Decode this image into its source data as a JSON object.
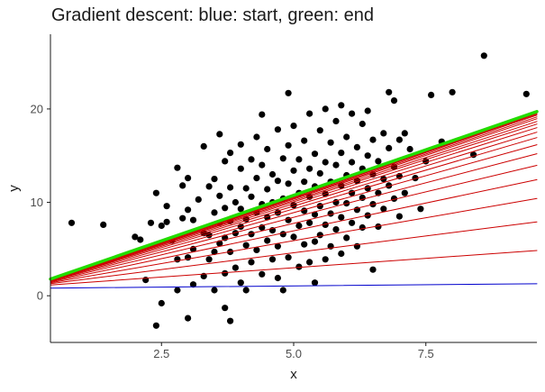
{
  "chart_data": {
    "type": "scatter",
    "title": "Gradient descent: blue: start, green: end",
    "xlabel": "x",
    "ylabel": "y",
    "xlim": [
      0.4,
      9.6
    ],
    "ylim": [
      -5,
      28
    ],
    "x_ticks": [
      2.5,
      5.0,
      7.5
    ],
    "x_tick_labels": [
      "2.5",
      "5.0",
      "7.5"
    ],
    "y_ticks": [
      0,
      10,
      20
    ],
    "y_tick_labels": [
      "0",
      "10",
      "20"
    ],
    "grid": false,
    "point_color": "#000000",
    "points": [
      [
        0.8,
        7.8
      ],
      [
        1.4,
        7.6
      ],
      [
        2.0,
        6.3
      ],
      [
        2.1,
        6.0
      ],
      [
        2.2,
        1.7
      ],
      [
        2.3,
        7.8
      ],
      [
        2.4,
        -3.2
      ],
      [
        2.4,
        11.0
      ],
      [
        2.5,
        7.5
      ],
      [
        2.5,
        -0.8
      ],
      [
        2.6,
        9.6
      ],
      [
        2.6,
        7.9
      ],
      [
        2.7,
        5.9
      ],
      [
        2.8,
        0.6
      ],
      [
        2.8,
        3.9
      ],
      [
        2.8,
        13.7
      ],
      [
        2.9,
        11.8
      ],
      [
        2.9,
        8.3
      ],
      [
        3.0,
        -2.4
      ],
      [
        3.0,
        4.1
      ],
      [
        3.0,
        12.6
      ],
      [
        3.0,
        9.2
      ],
      [
        3.1,
        1.2
      ],
      [
        3.1,
        8.1
      ],
      [
        3.1,
        5.0
      ],
      [
        3.2,
        10.3
      ],
      [
        3.3,
        6.7
      ],
      [
        3.3,
        16.0
      ],
      [
        3.3,
        2.1
      ],
      [
        3.4,
        11.7
      ],
      [
        3.4,
        6.5
      ],
      [
        3.4,
        3.9
      ],
      [
        3.5,
        8.9
      ],
      [
        3.5,
        12.5
      ],
      [
        3.5,
        0.6
      ],
      [
        3.5,
        4.7
      ],
      [
        3.6,
        17.3
      ],
      [
        3.6,
        7.8
      ],
      [
        3.6,
        5.6
      ],
      [
        3.6,
        10.7
      ],
      [
        3.7,
        -1.3
      ],
      [
        3.7,
        14.4
      ],
      [
        3.7,
        9.4
      ],
      [
        3.7,
        6.2
      ],
      [
        3.7,
        2.4
      ],
      [
        3.8,
        -2.7
      ],
      [
        3.8,
        11.6
      ],
      [
        3.8,
        8.0
      ],
      [
        3.8,
        4.7
      ],
      [
        3.8,
        15.3
      ],
      [
        3.9,
        10.0
      ],
      [
        3.9,
        6.7
      ],
      [
        3.9,
        3.0
      ],
      [
        4.0,
        13.6
      ],
      [
        4.0,
        7.4
      ],
      [
        4.0,
        9.3
      ],
      [
        4.0,
        1.4
      ],
      [
        4.0,
        16.2
      ],
      [
        4.1,
        11.5
      ],
      [
        4.1,
        5.4
      ],
      [
        4.1,
        8.2
      ],
      [
        4.1,
        0.6
      ],
      [
        4.2,
        14.6
      ],
      [
        4.2,
        10.6
      ],
      [
        4.2,
        3.6
      ],
      [
        4.2,
        6.6
      ],
      [
        4.3,
        17.0
      ],
      [
        4.3,
        12.6
      ],
      [
        4.3,
        8.9
      ],
      [
        4.3,
        4.9
      ],
      [
        4.4,
        19.4
      ],
      [
        4.4,
        9.8
      ],
      [
        4.4,
        7.3
      ],
      [
        4.4,
        14.0
      ],
      [
        4.4,
        2.3
      ],
      [
        4.5,
        11.4
      ],
      [
        4.5,
        15.7
      ],
      [
        4.5,
        5.9
      ],
      [
        4.5,
        8.4
      ],
      [
        4.6,
        13.0
      ],
      [
        4.6,
        10.0
      ],
      [
        4.6,
        3.9
      ],
      [
        4.6,
        7.0
      ],
      [
        4.7,
        17.8
      ],
      [
        4.7,
        12.3
      ],
      [
        4.7,
        8.9
      ],
      [
        4.7,
        5.3
      ],
      [
        4.7,
        1.9
      ],
      [
        4.8,
        14.7
      ],
      [
        4.8,
        10.4
      ],
      [
        4.8,
        6.6
      ],
      [
        4.8,
        0.6
      ],
      [
        4.9,
        21.7
      ],
      [
        4.9,
        16.1
      ],
      [
        4.9,
        12.0
      ],
      [
        4.9,
        8.1
      ],
      [
        4.9,
        4.1
      ],
      [
        5.0,
        13.4
      ],
      [
        5.0,
        9.7
      ],
      [
        5.0,
        6.3
      ],
      [
        5.0,
        18.2
      ],
      [
        5.1,
        11.0
      ],
      [
        5.1,
        7.5
      ],
      [
        5.1,
        14.6
      ],
      [
        5.1,
        3.1
      ],
      [
        5.2,
        16.6
      ],
      [
        5.2,
        9.1
      ],
      [
        5.2,
        12.2
      ],
      [
        5.2,
        5.5
      ],
      [
        5.3,
        19.5
      ],
      [
        5.3,
        13.6
      ],
      [
        5.3,
        7.8
      ],
      [
        5.3,
        10.6
      ],
      [
        5.3,
        3.6
      ],
      [
        5.4,
        15.2
      ],
      [
        5.4,
        11.7
      ],
      [
        5.4,
        8.7
      ],
      [
        5.4,
        5.8
      ],
      [
        5.4,
        1.4
      ],
      [
        5.5,
        17.7
      ],
      [
        5.5,
        13.1
      ],
      [
        5.5,
        9.6
      ],
      [
        5.5,
        6.5
      ],
      [
        5.6,
        20.0
      ],
      [
        5.6,
        14.3
      ],
      [
        5.6,
        10.9
      ],
      [
        5.6,
        7.6
      ],
      [
        5.6,
        3.9
      ],
      [
        5.7,
        16.4
      ],
      [
        5.7,
        12.2
      ],
      [
        5.7,
        8.8
      ],
      [
        5.7,
        5.3
      ],
      [
        5.8,
        18.7
      ],
      [
        5.8,
        14.0
      ],
      [
        5.8,
        10.0
      ],
      [
        5.8,
        7.1
      ],
      [
        5.9,
        20.4
      ],
      [
        5.9,
        15.3
      ],
      [
        5.9,
        11.8
      ],
      [
        5.9,
        8.4
      ],
      [
        5.9,
        4.5
      ],
      [
        6.0,
        17.0
      ],
      [
        6.0,
        12.9
      ],
      [
        6.0,
        9.9
      ],
      [
        6.0,
        6.2
      ],
      [
        6.1,
        19.5
      ],
      [
        6.1,
        14.3
      ],
      [
        6.1,
        11.0
      ],
      [
        6.1,
        7.8
      ],
      [
        6.2,
        15.9
      ],
      [
        6.2,
        12.3
      ],
      [
        6.2,
        9.2
      ],
      [
        6.2,
        5.3
      ],
      [
        6.3,
        18.4
      ],
      [
        6.3,
        13.6
      ],
      [
        6.3,
        10.5
      ],
      [
        6.3,
        7.3
      ],
      [
        6.4,
        19.8
      ],
      [
        6.4,
        15.0
      ],
      [
        6.4,
        11.5
      ],
      [
        6.4,
        8.6
      ],
      [
        6.5,
        16.7
      ],
      [
        6.5,
        13.0
      ],
      [
        6.5,
        9.8
      ],
      [
        6.5,
        2.8
      ],
      [
        6.6,
        14.4
      ],
      [
        6.6,
        11.0
      ],
      [
        6.6,
        7.4
      ],
      [
        6.7,
        17.4
      ],
      [
        6.7,
        12.5
      ],
      [
        6.7,
        9.3
      ],
      [
        6.8,
        21.8
      ],
      [
        6.8,
        15.8
      ],
      [
        6.8,
        11.8
      ],
      [
        6.9,
        20.9
      ],
      [
        6.9,
        13.8
      ],
      [
        6.9,
        10.4
      ],
      [
        7.0,
        16.7
      ],
      [
        7.0,
        12.8
      ],
      [
        7.0,
        8.5
      ],
      [
        7.1,
        17.4
      ],
      [
        7.1,
        11.0
      ],
      [
        7.2,
        15.7
      ],
      [
        7.3,
        12.6
      ],
      [
        7.4,
        9.3
      ],
      [
        7.5,
        14.4
      ],
      [
        7.6,
        21.5
      ],
      [
        7.8,
        16.5
      ],
      [
        8.0,
        21.8
      ],
      [
        8.4,
        15.1
      ],
      [
        8.6,
        25.7
      ],
      [
        9.4,
        21.6
      ]
    ],
    "series": [
      {
        "role": "start",
        "color": "#0000cc",
        "width": 1,
        "intercept": 0.8,
        "slope": 0.05
      },
      {
        "role": "iteration",
        "color": "#cc0000",
        "width": 1,
        "intercept": 1.0,
        "slope": 0.4
      },
      {
        "role": "iteration",
        "color": "#cc0000",
        "width": 1,
        "intercept": 1.0,
        "slope": 0.72
      },
      {
        "role": "iteration",
        "color": "#cc0000",
        "width": 1,
        "intercept": 1.0,
        "slope": 0.98
      },
      {
        "role": "iteration",
        "color": "#cc0000",
        "width": 1,
        "intercept": 1.0,
        "slope": 1.19
      },
      {
        "role": "iteration",
        "color": "#cc0000",
        "width": 1,
        "intercept": 1.0,
        "slope": 1.35
      },
      {
        "role": "iteration",
        "color": "#cc0000",
        "width": 1,
        "intercept": 1.0,
        "slope": 1.48
      },
      {
        "role": "iteration",
        "color": "#cc0000",
        "width": 1,
        "intercept": 1.0,
        "slope": 1.58
      },
      {
        "role": "iteration",
        "color": "#cc0000",
        "width": 1,
        "intercept": 1.0,
        "slope": 1.66
      },
      {
        "role": "iteration",
        "color": "#cc0000",
        "width": 1,
        "intercept": 1.0,
        "slope": 1.72
      },
      {
        "role": "iteration",
        "color": "#cc0000",
        "width": 1,
        "intercept": 1.0,
        "slope": 1.77
      },
      {
        "role": "iteration",
        "color": "#cc0000",
        "width": 1,
        "intercept": 1.0,
        "slope": 1.81
      },
      {
        "role": "iteration",
        "color": "#cc0000",
        "width": 1,
        "intercept": 1.0,
        "slope": 1.84
      },
      {
        "role": "iteration",
        "color": "#cc0000",
        "width": 1,
        "intercept": 1.0,
        "slope": 1.87
      },
      {
        "role": "iteration",
        "color": "#cc0000",
        "width": 1,
        "intercept": 1.0,
        "slope": 1.89
      },
      {
        "role": "iteration",
        "color": "#cc0000",
        "width": 1,
        "intercept": 1.0,
        "slope": 1.91
      },
      {
        "role": "iteration",
        "color": "#cc0000",
        "width": 1,
        "intercept": 1.0,
        "slope": 1.92
      },
      {
        "role": "iteration",
        "color": "#cc0000",
        "width": 1,
        "intercept": 1.0,
        "slope": 1.93
      },
      {
        "role": "end",
        "color": "#22dd00",
        "width": 3.5,
        "intercept": 1.0,
        "slope": 1.95
      }
    ]
  }
}
